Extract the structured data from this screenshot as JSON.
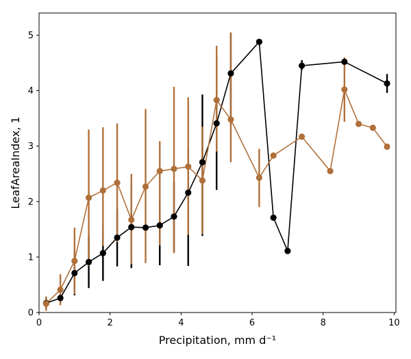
{
  "chart_data": {
    "type": "line",
    "title": "",
    "xlabel": "Precipitation,  mm d⁻¹",
    "ylabel": "LeafAreaIndex,  1",
    "xlim": [
      0,
      10.05
    ],
    "ylim": [
      0,
      5.4
    ],
    "xticks": [
      0,
      2,
      4,
      6,
      8,
      10
    ],
    "yticks": [
      0,
      1,
      2,
      3,
      4,
      5
    ],
    "grid": false,
    "legend": "none",
    "series": [
      {
        "color": "#000000",
        "x": [
          0.2,
          0.6,
          1.0,
          1.4,
          1.8,
          2.2,
          2.6,
          3.0,
          3.4,
          3.8,
          4.2,
          4.6,
          5.0,
          5.4,
          6.2,
          6.6,
          7.0,
          7.4,
          8.6,
          9.8
        ],
        "y": [
          0.17,
          0.26,
          0.71,
          0.91,
          1.07,
          1.35,
          1.54,
          1.53,
          1.57,
          1.73,
          2.16,
          2.71,
          3.41,
          4.31,
          4.88,
          1.71,
          1.11,
          4.45,
          4.52,
          4.13
        ],
        "err_low": [
          0.1,
          0.08,
          0.4,
          0.47,
          0.5,
          0.52,
          0.74,
          null,
          0.72,
          0.63,
          1.32,
          1.33,
          1.2,
          0.93,
          null,
          null,
          null,
          0.08,
          0.05,
          0.17
        ],
        "err_high": [
          0.1,
          0.08,
          0.4,
          0.47,
          0.5,
          0.52,
          0.74,
          null,
          0.45,
          0.63,
          0.8,
          1.22,
          1.2,
          0.73,
          null,
          null,
          null,
          0.1,
          0.05,
          0.17
        ]
      },
      {
        "color": "#b0703a",
        "x": [
          0.2,
          0.6,
          1.0,
          1.4,
          1.8,
          2.2,
          2.6,
          3.0,
          3.4,
          3.8,
          4.2,
          4.6,
          5.0,
          5.4,
          6.2,
          6.6,
          7.4,
          8.2,
          8.6,
          9.0,
          9.4,
          9.8
        ],
        "y": [
          0.16,
          0.41,
          0.93,
          2.07,
          2.2,
          2.34,
          1.67,
          2.27,
          2.55,
          2.59,
          2.63,
          2.38,
          3.83,
          3.48,
          2.43,
          2.83,
          3.17,
          2.55,
          4.02,
          3.4,
          3.33,
          2.99
        ],
        "err_low": [
          0.13,
          0.28,
          0.6,
          1.23,
          1.0,
          1.07,
          0.8,
          1.38,
          1.34,
          1.52,
          1.23,
          0.97,
          0.93,
          0.77,
          0.53,
          null,
          null,
          null,
          0.58,
          null,
          null,
          null
        ],
        "err_high": [
          0.13,
          0.28,
          0.6,
          1.23,
          1.14,
          1.07,
          0.83,
          1.4,
          0.54,
          1.48,
          1.25,
          0.97,
          0.98,
          1.57,
          0.52,
          null,
          null,
          null,
          0.58,
          null,
          null,
          null
        ]
      }
    ]
  }
}
